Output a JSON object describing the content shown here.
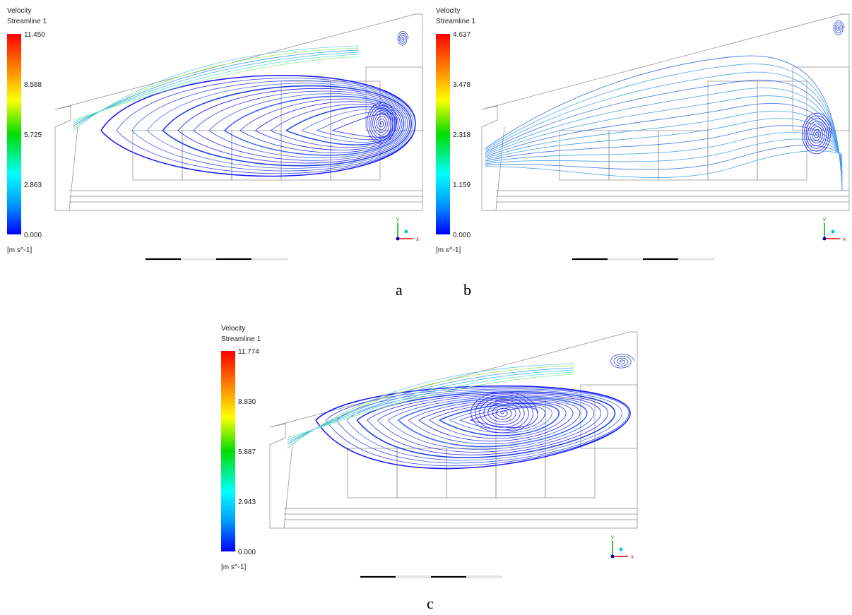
{
  "panels": [
    {
      "label": "a",
      "legend": {
        "title": "Velocity",
        "subtitle": "Streamline 1",
        "ticks": [
          "11.450",
          "8.588",
          "5.725",
          "2.863",
          "0.000"
        ],
        "unit": "[m s^-1]"
      },
      "axes": {
        "x": "x",
        "y": "y"
      }
    },
    {
      "label": "b",
      "legend": {
        "title": "Velocity",
        "subtitle": "Streamline 1",
        "ticks": [
          "4.637",
          "3.478",
          "2.318",
          "1.159",
          "0.000"
        ],
        "unit": "[m s^-1]"
      },
      "axes": {
        "x": "x",
        "y": "y"
      }
    },
    {
      "label": "c",
      "legend": {
        "title": "Velocity",
        "subtitle": "Streamline 1",
        "ticks": [
          "11.774",
          "8.830",
          "5.887",
          "2.943",
          "0.000"
        ],
        "unit": "[m s^-1]"
      },
      "axes": {
        "x": "x",
        "y": "y"
      }
    }
  ]
}
